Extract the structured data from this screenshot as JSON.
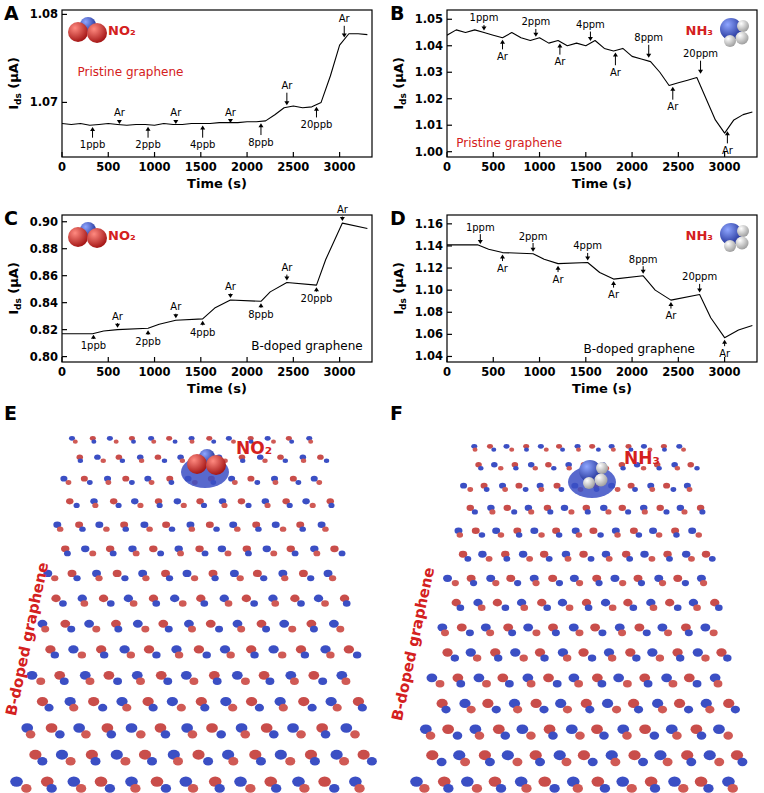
{
  "chart_data": [
    {
      "type": "line",
      "panel": "A",
      "molecule": "NO₂",
      "sample": {
        "text": "Pristine graphene",
        "color": "#d42020"
      },
      "x_label": "Time (s)",
      "y_label": "Ids (μA)",
      "color": "#000000",
      "x": [
        0,
        100,
        200,
        300,
        400,
        500,
        600,
        700,
        800,
        900,
        1000,
        1100,
        1200,
        1300,
        1400,
        1500,
        1600,
        1700,
        1800,
        1900,
        2000,
        2100,
        2200,
        2300,
        2400,
        2500,
        2600,
        2700,
        2800,
        2900,
        3000,
        3100,
        3200,
        3300
      ],
      "values": [
        1.0676,
        1.0675,
        1.0676,
        1.0674,
        1.0675,
        1.0676,
        1.0675,
        1.0674,
        1.0675,
        1.0675,
        1.0674,
        1.0676,
        1.0675,
        1.0675,
        1.0676,
        1.0676,
        1.0676,
        1.0677,
        1.0677,
        1.0677,
        1.0678,
        1.0678,
        1.0679,
        1.0686,
        1.0694,
        1.0696,
        1.0694,
        1.0695,
        1.07,
        1.073,
        1.0765,
        1.0778,
        1.0778,
        1.0777
      ],
      "xlim": [
        0,
        3350
      ],
      "xticks": [
        0,
        500,
        1000,
        1500,
        2000,
        2500,
        3000
      ],
      "ylim": [
        1.0638,
        1.0805
      ],
      "yticks": [
        1.07,
        1.08
      ],
      "annotations": [
        {
          "x": 330,
          "y": 1.0652,
          "text": "1ppb"
        },
        {
          "x": 620,
          "y": 1.0688,
          "text": "Ar"
        },
        {
          "x": 930,
          "y": 1.0652,
          "text": "2ppb"
        },
        {
          "x": 1230,
          "y": 1.0688,
          "text": "Ar"
        },
        {
          "x": 1520,
          "y": 1.0652,
          "text": "4ppb"
        },
        {
          "x": 1820,
          "y": 1.0689,
          "text": "Ar"
        },
        {
          "x": 2150,
          "y": 1.0655,
          "text": "8ppb"
        },
        {
          "x": 2430,
          "y": 1.0719,
          "text": "Ar"
        },
        {
          "x": 2750,
          "y": 1.0675,
          "text": "20ppb"
        },
        {
          "x": 3050,
          "y": 1.0795,
          "text": "Ar"
        }
      ]
    },
    {
      "type": "line",
      "panel": "B",
      "molecule": "NH₃",
      "sample": {
        "text": "Pristine graphene",
        "color": "#d42020"
      },
      "x_label": "Time (s)",
      "y_label": "Ids (μA)",
      "color": "#000000",
      "x": [
        0,
        100,
        200,
        300,
        400,
        500,
        600,
        700,
        800,
        900,
        1000,
        1100,
        1200,
        1300,
        1400,
        1500,
        1600,
        1700,
        1800,
        1900,
        2000,
        2100,
        2200,
        2300,
        2400,
        2500,
        2600,
        2700,
        2800,
        2900,
        3000,
        3100,
        3200,
        3300
      ],
      "values": [
        1.044,
        1.046,
        1.045,
        1.046,
        1.045,
        1.044,
        1.043,
        1.045,
        1.043,
        1.042,
        1.043,
        1.041,
        1.042,
        1.04,
        1.041,
        1.04,
        1.042,
        1.039,
        1.038,
        1.039,
        1.036,
        1.035,
        1.034,
        1.03,
        1.025,
        1.026,
        1.027,
        1.028,
        1.02,
        1.012,
        1.007,
        1.012,
        1.014,
        1.015
      ],
      "xlim": [
        0,
        3350
      ],
      "xticks": [
        0,
        500,
        1000,
        1500,
        2000,
        2500,
        3000
      ],
      "ylim": [
        0.998,
        1.0535
      ],
      "yticks": [
        {
          "value": 1,
          "label": "1.00"
        },
        1.01,
        1.02,
        1.03,
        1.04,
        1.05
      ],
      "annotations": [
        {
          "x": 400,
          "y": 1.0505,
          "text": "1ppm"
        },
        {
          "x": 600,
          "y": 1.036,
          "text": "Ar"
        },
        {
          "x": 960,
          "y": 1.049,
          "text": "2ppm"
        },
        {
          "x": 1220,
          "y": 1.034,
          "text": "Ar"
        },
        {
          "x": 1550,
          "y": 1.048,
          "text": "4ppm"
        },
        {
          "x": 1820,
          "y": 1.03,
          "text": "Ar"
        },
        {
          "x": 2180,
          "y": 1.043,
          "text": "8ppm"
        },
        {
          "x": 2440,
          "y": 1.017,
          "text": "Ar"
        },
        {
          "x": 2740,
          "y": 1.037,
          "text": "20ppm"
        },
        {
          "x": 3030,
          "y": 1.0005,
          "text": "Ar"
        }
      ]
    },
    {
      "type": "line",
      "panel": "C",
      "molecule": "NO₂",
      "sample": {
        "text": "B-doped graphene",
        "color": "#000000"
      },
      "x_label": "Time (s)",
      "y_label": "Ids (μA)",
      "color": "#000000",
      "x": [
        0,
        330,
        450,
        600,
        930,
        1050,
        1230,
        1520,
        1650,
        1820,
        2150,
        2250,
        2430,
        2750,
        2850,
        3030,
        3300
      ],
      "values": [
        0.817,
        0.817,
        0.819,
        0.82,
        0.821,
        0.824,
        0.827,
        0.828,
        0.836,
        0.842,
        0.841,
        0.848,
        0.855,
        0.853,
        0.872,
        0.899,
        0.895
      ],
      "xlim": [
        0,
        3350
      ],
      "xticks": [
        0,
        500,
        1000,
        1500,
        2000,
        2500,
        3000
      ],
      "ylim": [
        0.796,
        0.905
      ],
      "yticks": [
        {
          "value": 0.8,
          "label": "0.80"
        },
        0.82,
        0.84,
        0.86,
        0.88,
        {
          "value": 0.9,
          "label": "0.90"
        }
      ],
      "annotations": [
        {
          "x": 340,
          "y": 0.808,
          "text": "1ppb"
        },
        {
          "x": 600,
          "y": 0.83,
          "text": "Ar"
        },
        {
          "x": 930,
          "y": 0.811,
          "text": "2ppb"
        },
        {
          "x": 1230,
          "y": 0.837,
          "text": "Ar"
        },
        {
          "x": 1520,
          "y": 0.818,
          "text": "4ppb"
        },
        {
          "x": 1820,
          "y": 0.852,
          "text": "Ar"
        },
        {
          "x": 2150,
          "y": 0.831,
          "text": "8ppb"
        },
        {
          "x": 2430,
          "y": 0.866,
          "text": "Ar"
        },
        {
          "x": 2750,
          "y": 0.843,
          "text": "20ppb"
        },
        {
          "x": 3030,
          "y": 0.909,
          "text": "Ar"
        }
      ]
    },
    {
      "type": "line",
      "panel": "D",
      "molecule": "NH₃",
      "sample": {
        "text": "B-doped graphene",
        "color": "#000000"
      },
      "x_label": "Time (s)",
      "y_label": "Ids (μA)",
      "color": "#000000",
      "x": [
        0,
        330,
        450,
        600,
        930,
        1050,
        1200,
        1520,
        1650,
        1800,
        2120,
        2250,
        2420,
        2730,
        2850,
        3000,
        3150,
        3300
      ],
      "values": [
        1.141,
        1.141,
        1.137,
        1.134,
        1.133,
        1.128,
        1.124,
        1.125,
        1.116,
        1.11,
        1.113,
        1.1,
        1.091,
        1.096,
        1.075,
        1.057,
        1.064,
        1.068
      ],
      "xlim": [
        0,
        3350
      ],
      "xticks": [
        0,
        500,
        1000,
        1500,
        2000,
        2500,
        3000
      ],
      "ylim": [
        1.035,
        1.168
      ],
      "yticks": [
        1.04,
        1.06,
        1.08,
        {
          "value": 1.1,
          "label": "1.10"
        },
        1.12,
        1.14,
        1.16
      ],
      "annotations": [
        {
          "x": 360,
          "y": 1.157,
          "text": "1ppm"
        },
        {
          "x": 600,
          "y": 1.12,
          "text": "Ar"
        },
        {
          "x": 930,
          "y": 1.149,
          "text": "2ppm"
        },
        {
          "x": 1200,
          "y": 1.11,
          "text": "Ar"
        },
        {
          "x": 1520,
          "y": 1.14,
          "text": "4ppm"
        },
        {
          "x": 1800,
          "y": 1.096,
          "text": "Ar"
        },
        {
          "x": 2120,
          "y": 1.128,
          "text": "8ppm"
        },
        {
          "x": 2420,
          "y": 1.077,
          "text": "Ar"
        },
        {
          "x": 2730,
          "y": 1.112,
          "text": "20ppm"
        },
        {
          "x": 3000,
          "y": 1.043,
          "text": "Ar"
        }
      ]
    }
  ],
  "images": [
    {
      "panel": "E",
      "label": "B-doped graphene",
      "molecule": "NO₂"
    },
    {
      "panel": "F",
      "label": "B-doped graphene",
      "molecule": "NH₃"
    }
  ]
}
